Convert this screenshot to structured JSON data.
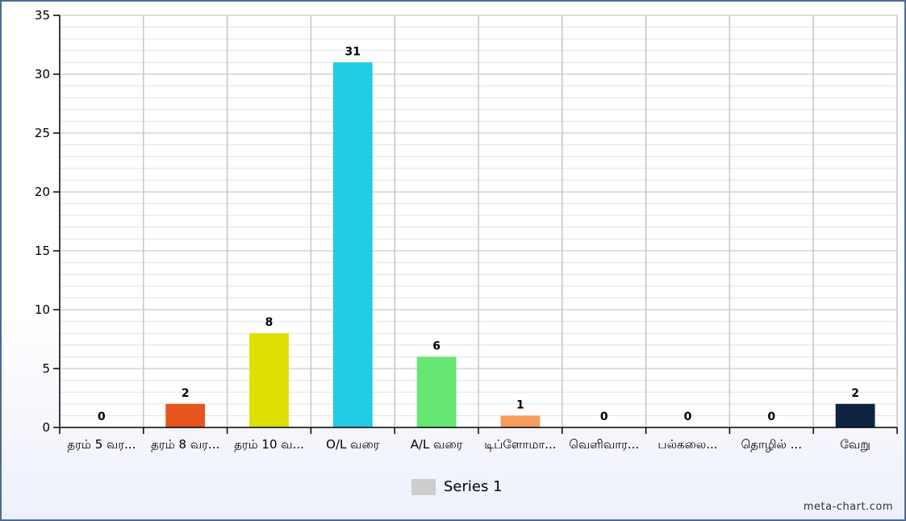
{
  "chart_data": {
    "type": "bar",
    "categories": [
      "தரம் 5 வர...",
      "தரம் 8 வர...",
      "தரம் 10 வ...",
      "O/L வரை",
      "A/L வரை",
      "டிப்ளோமா...",
      "வெளிவார...",
      "பல்கலை...",
      "தொழில் ...",
      "வேறு"
    ],
    "values": [
      0,
      2,
      8,
      31,
      6,
      1,
      0,
      0,
      0,
      2
    ],
    "colors": [
      "#e8541e",
      "#e8541e",
      "#dde000",
      "#22cbe4",
      "#66e673",
      "#f79d5b",
      "#cccccc",
      "#cccccc",
      "#cccccc",
      "#0e2440"
    ],
    "ylim": [
      0,
      35
    ],
    "yticks": [
      0,
      5,
      10,
      15,
      20,
      25,
      30,
      35
    ],
    "grid": true,
    "legend_position": "bottom-center",
    "series": [
      {
        "name": "Series 1",
        "values": [
          0,
          2,
          8,
          31,
          6,
          1,
          0,
          0,
          0,
          2
        ]
      }
    ]
  },
  "legend": {
    "label": "Series 1",
    "swatch_color": "#cccccc"
  },
  "watermark": "meta-chart.com"
}
